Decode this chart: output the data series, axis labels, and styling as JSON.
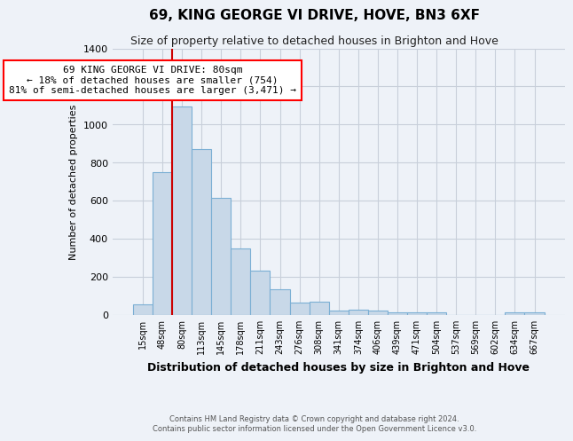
{
  "title": "69, KING GEORGE VI DRIVE, HOVE, BN3 6XF",
  "subtitle": "Size of property relative to detached houses in Brighton and Hove",
  "xlabel": "Distribution of detached houses by size in Brighton and Hove",
  "ylabel": "Number of detached properties",
  "categories": [
    "15sqm",
    "48sqm",
    "80sqm",
    "113sqm",
    "145sqm",
    "178sqm",
    "211sqm",
    "243sqm",
    "276sqm",
    "308sqm",
    "341sqm",
    "374sqm",
    "406sqm",
    "439sqm",
    "471sqm",
    "504sqm",
    "537sqm",
    "569sqm",
    "602sqm",
    "634sqm",
    "667sqm"
  ],
  "values": [
    55,
    750,
    1095,
    870,
    615,
    350,
    230,
    132,
    65,
    70,
    20,
    25,
    20,
    10,
    10,
    12,
    0,
    0,
    0,
    10,
    12
  ],
  "bar_color": "#c8d8e8",
  "bar_edge_color": "#7bafd4",
  "highlight_bar_index": 2,
  "highlight_color": "#cc0000",
  "ylim": [
    0,
    1400
  ],
  "yticks": [
    0,
    200,
    400,
    600,
    800,
    1000,
    1200,
    1400
  ],
  "annotation_title": "69 KING GEORGE VI DRIVE: 80sqm",
  "annotation_line1": "← 18% of detached houses are smaller (754)",
  "annotation_line2": "81% of semi-detached houses are larger (3,471) →",
  "footer_line1": "Contains HM Land Registry data © Crown copyright and database right 2024.",
  "footer_line2": "Contains public sector information licensed under the Open Government Licence v3.0.",
  "background_color": "#eef2f8",
  "grid_color": "#c8cfda",
  "title_fontsize": 11,
  "subtitle_fontsize": 9
}
